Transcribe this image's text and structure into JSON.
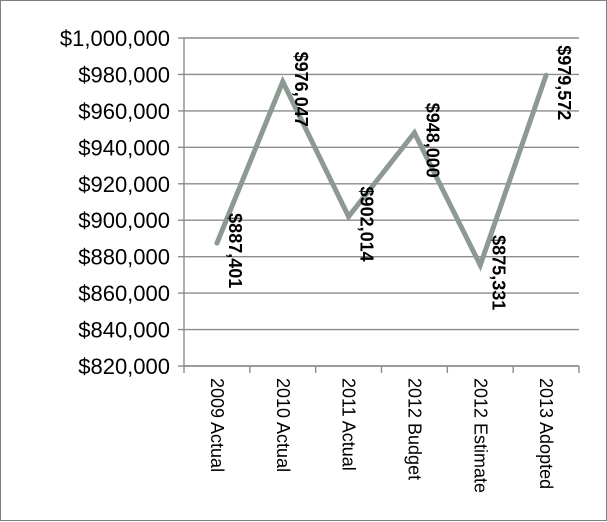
{
  "chart_data": {
    "type": "line",
    "categories": [
      "2009 Actual",
      "2010 Actual",
      "2011 Actual",
      "2012 Budget",
      "2012 Estimate",
      "2013 Adopted"
    ],
    "values": [
      887401,
      976047,
      902014,
      948000,
      875331,
      979572
    ],
    "data_labels": [
      "$887,401",
      "$976,047",
      "$902,014",
      "$948,000",
      "$875,331",
      "$979,572"
    ],
    "ytick_labels": [
      "$1,000,000",
      "$980,000",
      "$960,000",
      "$940,000",
      "$920,000",
      "$900,000",
      "$880,000",
      "$860,000",
      "$840,000",
      "$820,000"
    ],
    "ylim": [
      820000,
      1000000
    ],
    "ystep": 20000,
    "grid": true,
    "title": "",
    "xlabel": "",
    "ylabel": "",
    "line_color": "#8c9a92",
    "grid_color": "#8c8c8c"
  }
}
